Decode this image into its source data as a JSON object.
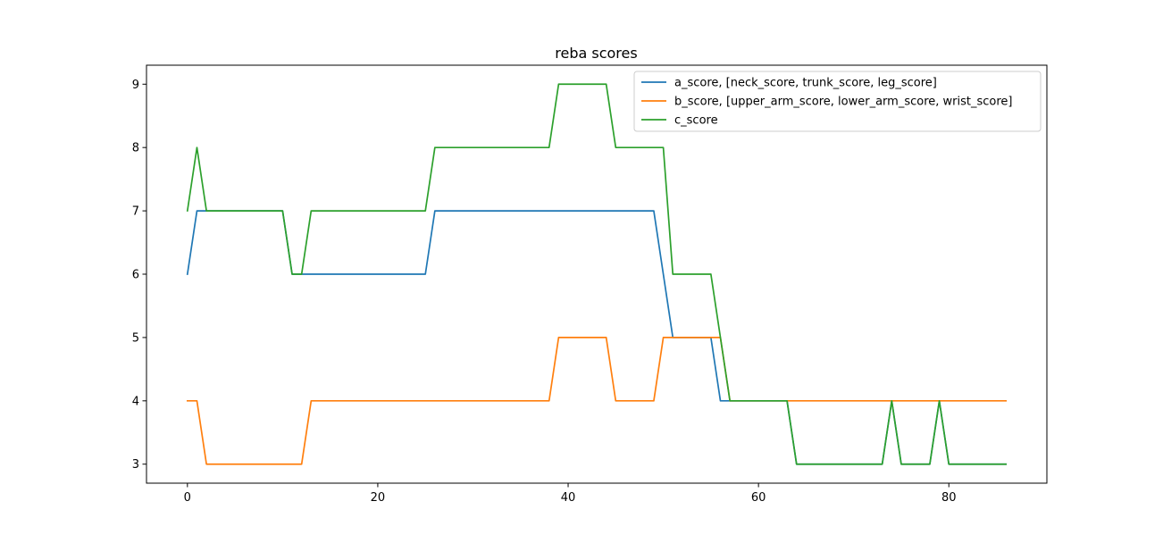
{
  "chart_data": {
    "type": "line",
    "title": "reba scores",
    "xlabel": "",
    "ylabel": "",
    "xlim": [
      -4.3,
      90.3
    ],
    "ylim": [
      2.7,
      9.3
    ],
    "x_ticks": [
      0,
      20,
      40,
      60,
      80
    ],
    "y_ticks": [
      3,
      4,
      5,
      6,
      7,
      8,
      9
    ],
    "grid": false,
    "legend_position": "top-right",
    "series": [
      {
        "name": "a_score, [neck_score, trunk_score, leg_score]",
        "color": "#1f77b4",
        "values": [
          6,
          7,
          7,
          7,
          7,
          7,
          7,
          7,
          7,
          7,
          7,
          6,
          6,
          6,
          6,
          6,
          6,
          6,
          6,
          6,
          6,
          6,
          6,
          6,
          6,
          6,
          7,
          7,
          7,
          7,
          7,
          7,
          7,
          7,
          7,
          7,
          7,
          7,
          7,
          7,
          7,
          7,
          7,
          7,
          7,
          7,
          7,
          7,
          7,
          7,
          6,
          5,
          5,
          5,
          5,
          5,
          4,
          4,
          4,
          4,
          4,
          4,
          4,
          4,
          3,
          3,
          3,
          3,
          3,
          3,
          3,
          3,
          3,
          3,
          4,
          3,
          3,
          3,
          3,
          4,
          3,
          3,
          3,
          3,
          3,
          3,
          3
        ]
      },
      {
        "name": "b_score, [upper_arm_score, lower_arm_score, wrist_score]",
        "color": "#ff7f0e",
        "values": [
          4,
          4,
          3,
          3,
          3,
          3,
          3,
          3,
          3,
          3,
          3,
          3,
          3,
          4,
          4,
          4,
          4,
          4,
          4,
          4,
          4,
          4,
          4,
          4,
          4,
          4,
          4,
          4,
          4,
          4,
          4,
          4,
          4,
          4,
          4,
          4,
          4,
          4,
          4,
          5,
          5,
          5,
          5,
          5,
          5,
          4,
          4,
          4,
          4,
          4,
          5,
          5,
          5,
          5,
          5,
          5,
          5,
          4,
          4,
          4,
          4,
          4,
          4,
          4,
          4,
          4,
          4,
          4,
          4,
          4,
          4,
          4,
          4,
          4,
          4,
          4,
          4,
          4,
          4,
          4,
          4,
          4,
          4,
          4,
          4,
          4,
          4
        ]
      },
      {
        "name": "c_score",
        "color": "#2ca02c",
        "values": [
          7,
          8,
          7,
          7,
          7,
          7,
          7,
          7,
          7,
          7,
          7,
          6,
          6,
          7,
          7,
          7,
          7,
          7,
          7,
          7,
          7,
          7,
          7,
          7,
          7,
          7,
          8,
          8,
          8,
          8,
          8,
          8,
          8,
          8,
          8,
          8,
          8,
          8,
          8,
          9,
          9,
          9,
          9,
          9,
          9,
          8,
          8,
          8,
          8,
          8,
          8,
          6,
          6,
          6,
          6,
          6,
          5,
          4,
          4,
          4,
          4,
          4,
          4,
          4,
          3,
          3,
          3,
          3,
          3,
          3,
          3,
          3,
          3,
          3,
          4,
          3,
          3,
          3,
          3,
          4,
          3,
          3,
          3,
          3,
          3,
          3,
          3
        ]
      }
    ]
  }
}
